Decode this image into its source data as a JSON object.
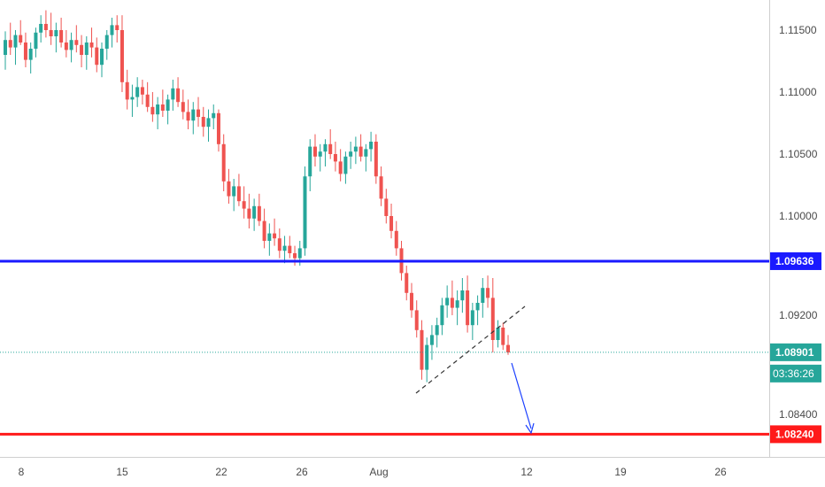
{
  "chart_data": {
    "type": "candlestick",
    "y_axis": {
      "range": [
        1.0804,
        1.1187
      ],
      "ticks": [
        "1.11500",
        "1.11000",
        "1.10500",
        "1.10000",
        "1.09200",
        "1.08400"
      ],
      "tick_values": [
        1.115,
        1.11,
        1.105,
        1.1,
        1.092,
        1.084
      ]
    },
    "x_axis": {
      "ticks": [
        "8",
        "15",
        "22",
        "26",
        "Aug",
        "12",
        "19",
        "26"
      ]
    },
    "levels": [
      {
        "name": "resistance",
        "value": 1.09636,
        "label": "1.09636",
        "color": "#1a1aff"
      },
      {
        "name": "support",
        "value": 1.0824,
        "label": "1.08240",
        "color": "#ff1a1a"
      },
      {
        "name": "last-price",
        "value": 1.08901,
        "label": "1.08901",
        "color": "#26a69a"
      }
    ],
    "countdown": "03:36:26",
    "series": [
      {
        "kind": "ohlc",
        "points": [
          [
            1.113,
            1.1149,
            1.1118,
            1.1142
          ],
          [
            1.1142,
            1.1156,
            1.113,
            1.1136
          ],
          [
            1.1136,
            1.115,
            1.1122,
            1.1146
          ],
          [
            1.1146,
            1.1158,
            1.1138,
            1.114
          ],
          [
            1.114,
            1.1148,
            1.112,
            1.1126
          ],
          [
            1.1126,
            1.114,
            1.1115,
            1.1135
          ],
          [
            1.1135,
            1.1152,
            1.1128,
            1.1148
          ],
          [
            1.1148,
            1.1162,
            1.114,
            1.1155
          ],
          [
            1.1155,
            1.1166,
            1.1144,
            1.115
          ],
          [
            1.115,
            1.1164,
            1.1138,
            1.1145
          ],
          [
            1.1145,
            1.1156,
            1.1132,
            1.115
          ],
          [
            1.115,
            1.116,
            1.1136,
            1.114
          ],
          [
            1.114,
            1.115,
            1.1128,
            1.1134
          ],
          [
            1.1134,
            1.1148,
            1.1124,
            1.1142
          ],
          [
            1.1142,
            1.1154,
            1.1132,
            1.1138
          ],
          [
            1.1138,
            1.1146,
            1.112,
            1.113
          ],
          [
            1.113,
            1.1145,
            1.1118,
            1.114
          ],
          [
            1.114,
            1.1152,
            1.1128,
            1.1136
          ],
          [
            1.1136,
            1.1144,
            1.1116,
            1.1122
          ],
          [
            1.1122,
            1.114,
            1.1112,
            1.1135
          ],
          [
            1.1135,
            1.115,
            1.1126,
            1.1146
          ],
          [
            1.1146,
            1.116,
            1.1136,
            1.1154
          ],
          [
            1.1154,
            1.1162,
            1.114,
            1.115
          ],
          [
            1.115,
            1.1162,
            1.11,
            1.1108
          ],
          [
            1.1108,
            1.1118,
            1.1086,
            1.1094
          ],
          [
            1.1094,
            1.1106,
            1.108,
            1.1096
          ],
          [
            1.1096,
            1.1112,
            1.1088,
            1.1104
          ],
          [
            1.1104,
            1.111,
            1.109,
            1.1098
          ],
          [
            1.1098,
            1.1108,
            1.1084,
            1.1088
          ],
          [
            1.1088,
            1.11,
            1.1076,
            1.1082
          ],
          [
            1.1082,
            1.1096,
            1.107,
            1.109
          ],
          [
            1.109,
            1.1102,
            1.108,
            1.1085
          ],
          [
            1.1085,
            1.1098,
            1.1074,
            1.1094
          ],
          [
            1.1094,
            1.111,
            1.1085,
            1.1103
          ],
          [
            1.1103,
            1.1112,
            1.1088,
            1.1092
          ],
          [
            1.1092,
            1.1102,
            1.1078,
            1.1084
          ],
          [
            1.1084,
            1.1094,
            1.107,
            1.1077
          ],
          [
            1.1077,
            1.1092,
            1.1066,
            1.1086
          ],
          [
            1.1086,
            1.1096,
            1.1072,
            1.108
          ],
          [
            1.108,
            1.1088,
            1.1064,
            1.1072
          ],
          [
            1.1072,
            1.1086,
            1.106,
            1.1079
          ],
          [
            1.1079,
            1.109,
            1.107,
            1.1083
          ],
          [
            1.1083,
            1.1086,
            1.1052,
            1.1058
          ],
          [
            1.1058,
            1.1066,
            1.102,
            1.1028
          ],
          [
            1.1028,
            1.1038,
            1.101,
            1.1016
          ],
          [
            1.1016,
            1.103,
            1.1004,
            1.1024
          ],
          [
            1.1024,
            1.1034,
            1.1008,
            1.1012
          ],
          [
            1.1012,
            1.1024,
            1.0998,
            1.1006
          ],
          [
            1.1006,
            1.1018,
            1.099,
            1.0998
          ],
          [
            1.0998,
            1.1014,
            1.0988,
            1.1008
          ],
          [
            1.1008,
            1.1018,
            1.0992,
            1.0996
          ],
          [
            1.0996,
            1.1006,
            1.0974,
            1.098
          ],
          [
            1.098,
            1.0994,
            1.0968,
            1.0986
          ],
          [
            1.0986,
            1.0998,
            1.0976,
            1.0982
          ],
          [
            1.0982,
            1.099,
            1.0966,
            1.0972
          ],
          [
            1.0972,
            1.0984,
            1.0962,
            1.0976
          ],
          [
            1.0976,
            1.0984,
            1.0966,
            1.097
          ],
          [
            1.097,
            1.0976,
            1.096,
            1.0966
          ],
          [
            1.0966,
            1.098,
            1.096,
            1.0974
          ],
          [
            1.0974,
            1.104,
            1.0968,
            1.1032
          ],
          [
            1.1032,
            1.1062,
            1.102,
            1.1056
          ],
          [
            1.1056,
            1.1066,
            1.104,
            1.1048
          ],
          [
            1.1048,
            1.1058,
            1.1036,
            1.1052
          ],
          [
            1.1052,
            1.1062,
            1.104,
            1.1058
          ],
          [
            1.1058,
            1.107,
            1.1046,
            1.105
          ],
          [
            1.105,
            1.106,
            1.1036,
            1.1044
          ],
          [
            1.1044,
            1.1054,
            1.1028,
            1.1034
          ],
          [
            1.1034,
            1.1052,
            1.1026,
            1.1048
          ],
          [
            1.1048,
            1.106,
            1.1038,
            1.1052
          ],
          [
            1.1052,
            1.1064,
            1.1042,
            1.1056
          ],
          [
            1.1056,
            1.1066,
            1.1044,
            1.1048
          ],
          [
            1.1048,
            1.1058,
            1.1036,
            1.1054
          ],
          [
            1.1054,
            1.1068,
            1.1044,
            1.106
          ],
          [
            1.106,
            1.1066,
            1.1026,
            1.1032
          ],
          [
            1.1032,
            1.104,
            1.1008,
            1.1014
          ],
          [
            1.1014,
            1.1022,
            1.0994,
            1.1
          ],
          [
            1.1,
            1.101,
            1.0982,
            1.0988
          ],
          [
            1.0988,
            1.0996,
            1.0968,
            1.0974
          ],
          [
            1.0974,
            1.098,
            1.0948,
            1.0954
          ],
          [
            1.0954,
            1.096,
            1.0932,
            1.0938
          ],
          [
            1.0938,
            1.0946,
            1.0918,
            1.0924
          ],
          [
            1.0924,
            1.0932,
            1.0902,
            1.0908
          ],
          [
            1.0908,
            1.0916,
            1.0868,
            1.0876
          ],
          [
            1.0876,
            1.0902,
            1.0866,
            1.0896
          ],
          [
            1.0896,
            1.0912,
            1.0884,
            1.0904
          ],
          [
            1.0904,
            1.0918,
            1.0894,
            1.0912
          ],
          [
            1.0912,
            1.0934,
            1.0904,
            1.0928
          ],
          [
            1.0928,
            1.0944,
            1.0918,
            1.0934
          ],
          [
            1.0934,
            1.0948,
            1.092,
            1.0926
          ],
          [
            1.0926,
            1.094,
            1.0912,
            1.0932
          ],
          [
            1.0932,
            1.095,
            1.0922,
            1.094
          ],
          [
            1.094,
            1.0952,
            1.0906,
            1.0912
          ],
          [
            1.0912,
            1.093,
            1.09,
            1.0924
          ],
          [
            1.0924,
            1.0936,
            1.0912,
            1.093
          ],
          [
            1.093,
            1.095,
            1.0918,
            1.0942
          ],
          [
            1.0942,
            1.0952,
            1.0926,
            1.0934
          ],
          [
            1.0934,
            1.095,
            1.089,
            1.09
          ],
          [
            1.09,
            1.0916,
            1.0894,
            1.091
          ],
          [
            1.091,
            1.0914,
            1.0892,
            1.0896
          ],
          [
            1.0896,
            1.0904,
            1.0888,
            1.089
          ]
        ]
      }
    ],
    "annotations": [
      {
        "kind": "trendline",
        "style": "dashed",
        "color": "#333333"
      },
      {
        "kind": "arrow",
        "direction": "down",
        "color": "#1a3fff"
      }
    ]
  }
}
